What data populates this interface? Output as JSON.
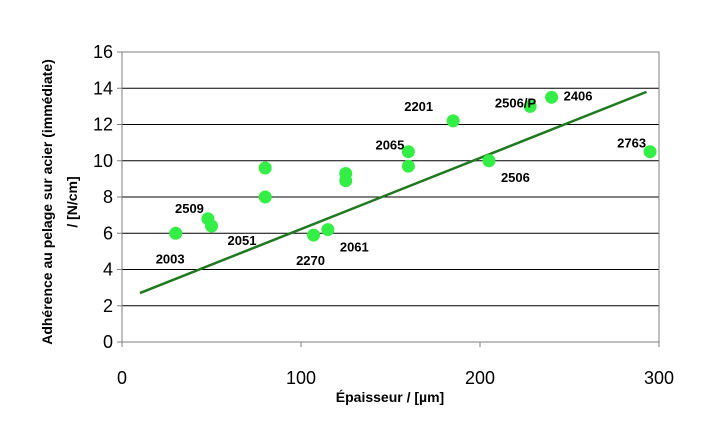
{
  "chart_data": {
    "type": "scatter",
    "title": "",
    "xlabel": "Épaisseur / [µm]",
    "ylabel_lines": [
      "Adhérence au pelage sur acier (immédiate)",
      "/ [N/cm]"
    ],
    "xlim": [
      0,
      300
    ],
    "ylim": [
      0,
      16
    ],
    "x_ticks": [
      0,
      100,
      200,
      300
    ],
    "y_ticks": [
      0,
      2,
      4,
      6,
      8,
      10,
      12,
      14,
      16
    ],
    "grid": "horizontal",
    "legend": "none",
    "colors": {
      "points": "#33ee44",
      "trend": "#1f7a1f",
      "grid": "#000000",
      "axis": "#7f7f7f"
    },
    "points": [
      {
        "x": 30,
        "y": 6.0,
        "label": "2003"
      },
      {
        "x": 48,
        "y": 6.8,
        "label": "2509"
      },
      {
        "x": 50,
        "y": 6.4,
        "label": "2051"
      },
      {
        "x": 80,
        "y": 9.6,
        "label": ""
      },
      {
        "x": 80,
        "y": 8.0,
        "label": ""
      },
      {
        "x": 107,
        "y": 5.9,
        "label": "2270"
      },
      {
        "x": 115,
        "y": 6.2,
        "label": "2061"
      },
      {
        "x": 125,
        "y": 9.3,
        "label": ""
      },
      {
        "x": 125,
        "y": 8.9,
        "label": ""
      },
      {
        "x": 160,
        "y": 10.5,
        "label": "2065"
      },
      {
        "x": 160,
        "y": 9.7,
        "label": ""
      },
      {
        "x": 185,
        "y": 12.2,
        "label": "2201"
      },
      {
        "x": 205,
        "y": 10.0,
        "label": "2506"
      },
      {
        "x": 228,
        "y": 13.0,
        "label": "2506/P"
      },
      {
        "x": 240,
        "y": 13.5,
        "label": "2406"
      },
      {
        "x": 295,
        "y": 10.5,
        "label": "2763"
      }
    ],
    "trendline": {
      "x": [
        10,
        293
      ],
      "y": [
        2.7,
        13.8
      ]
    }
  }
}
